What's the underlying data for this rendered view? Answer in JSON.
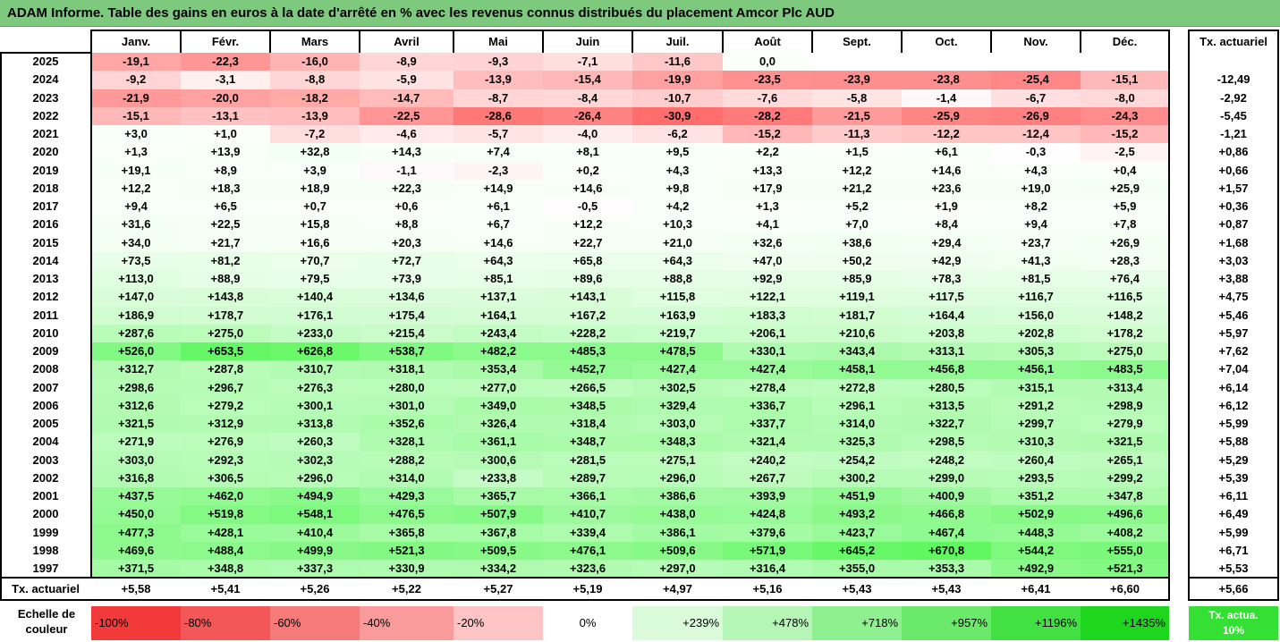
{
  "title": "ADAM Informe. Table des gains en euros à la date d'arrêté en % avec les revenus connus distribués du placement Amcor Plc AUD",
  "months": [
    "Janv.",
    "Févr.",
    "Mars",
    "Avril",
    "Mai",
    "Juin",
    "Juil.",
    "Août",
    "Sept.",
    "Oct.",
    "Nov.",
    "Déc."
  ],
  "rate_header": "Tx. actuariel",
  "footer_label": "Tx. actuariel",
  "scale_label": "Echelle de couleur",
  "scale": [
    "-100%",
    "-80%",
    "-60%",
    "-40%",
    "-20%",
    "0%",
    "+239%",
    "+478%",
    "+718%",
    "+957%",
    "+1196%",
    "+1435%"
  ],
  "scale_colors": [
    "#f23a3a",
    "#f45757",
    "#f77a7a",
    "#f99b9b",
    "#fcc4c4",
    "#ffffff",
    "#d9fbd9",
    "#b5f5b5",
    "#8ff08f",
    "#6ae96a",
    "#43e043",
    "#1fd61f"
  ],
  "rate_legend": "Tx. actua. 10%",
  "rate_legend_color": "#33e033",
  "chart_data": {
    "type": "table",
    "title": "ADAM Informe. Table des gains en euros à la date d'arrêté en % avec les revenus connus distribués du placement Amcor Plc AUD",
    "columns": [
      "Janv.",
      "Févr.",
      "Mars",
      "Avril",
      "Mai",
      "Juin",
      "Juil.",
      "Août",
      "Sept.",
      "Oct.",
      "Nov.",
      "Déc."
    ],
    "rows": [
      {
        "year": "2025",
        "values": [
          "-19,1",
          "-22,3",
          "-16,0",
          "-8,9",
          "-9,3",
          "-7,1",
          "-11,6",
          "0,0",
          "",
          "",
          "",
          ""
        ],
        "rate": ""
      },
      {
        "year": "2024",
        "values": [
          "-9,2",
          "-3,1",
          "-8,8",
          "-5,9",
          "-13,9",
          "-15,4",
          "-19,9",
          "-23,5",
          "-23,9",
          "-23,8",
          "-25,4",
          "-15,1"
        ],
        "rate": "-12,49"
      },
      {
        "year": "2023",
        "values": [
          "-21,9",
          "-20,0",
          "-18,2",
          "-14,7",
          "-8,7",
          "-8,4",
          "-10,7",
          "-7,6",
          "-5,8",
          "-1,4",
          "-6,7",
          "-8,0"
        ],
        "rate": "-2,92"
      },
      {
        "year": "2022",
        "values": [
          "-15,1",
          "-13,1",
          "-13,9",
          "-22,5",
          "-28,6",
          "-26,4",
          "-30,9",
          "-28,2",
          "-21,5",
          "-25,9",
          "-26,9",
          "-24,3"
        ],
        "rate": "-5,45"
      },
      {
        "year": "2021",
        "values": [
          "+3,0",
          "+1,0",
          "-7,2",
          "-4,6",
          "-5,7",
          "-4,0",
          "-6,2",
          "-15,2",
          "-11,3",
          "-12,2",
          "-12,4",
          "-15,2"
        ],
        "rate": "-1,21"
      },
      {
        "year": "2020",
        "values": [
          "+1,3",
          "+13,9",
          "+32,8",
          "+14,3",
          "+7,4",
          "+8,1",
          "+9,5",
          "+2,2",
          "+1,5",
          "+6,1",
          "-0,3",
          "-2,5"
        ],
        "rate": "+0,86"
      },
      {
        "year": "2019",
        "values": [
          "+19,1",
          "+8,9",
          "+3,9",
          "-1,1",
          "-2,3",
          "+0,2",
          "+4,3",
          "+13,3",
          "+12,2",
          "+14,6",
          "+4,3",
          "+0,4"
        ],
        "rate": "+0,66"
      },
      {
        "year": "2018",
        "values": [
          "+12,2",
          "+18,3",
          "+18,9",
          "+22,3",
          "+14,9",
          "+14,6",
          "+9,8",
          "+17,9",
          "+21,2",
          "+23,6",
          "+19,0",
          "+25,9"
        ],
        "rate": "+1,57"
      },
      {
        "year": "2017",
        "values": [
          "+9,4",
          "+6,5",
          "+0,7",
          "+0,6",
          "+6,1",
          "-0,5",
          "+4,2",
          "+1,3",
          "+5,2",
          "+1,9",
          "+8,2",
          "+5,9"
        ],
        "rate": "+0,36"
      },
      {
        "year": "2016",
        "values": [
          "+31,6",
          "+22,5",
          "+15,8",
          "+8,8",
          "+6,7",
          "+12,2",
          "+10,3",
          "+4,1",
          "+7,0",
          "+8,4",
          "+9,4",
          "+7,8"
        ],
        "rate": "+0,87"
      },
      {
        "year": "2015",
        "values": [
          "+34,0",
          "+21,7",
          "+16,6",
          "+20,3",
          "+14,6",
          "+22,7",
          "+21,0",
          "+32,6",
          "+38,6",
          "+29,4",
          "+23,7",
          "+26,9"
        ],
        "rate": "+1,68"
      },
      {
        "year": "2014",
        "values": [
          "+73,5",
          "+81,2",
          "+70,7",
          "+72,7",
          "+64,3",
          "+65,8",
          "+64,3",
          "+47,0",
          "+50,2",
          "+42,9",
          "+41,3",
          "+28,3"
        ],
        "rate": "+3,03"
      },
      {
        "year": "2013",
        "values": [
          "+113,0",
          "+88,9",
          "+79,5",
          "+73,9",
          "+85,1",
          "+89,6",
          "+88,8",
          "+92,9",
          "+85,9",
          "+78,3",
          "+81,5",
          "+76,4"
        ],
        "rate": "+3,88"
      },
      {
        "year": "2012",
        "values": [
          "+147,0",
          "+143,8",
          "+140,4",
          "+134,6",
          "+137,1",
          "+143,1",
          "+115,8",
          "+122,1",
          "+119,1",
          "+117,5",
          "+116,7",
          "+116,5"
        ],
        "rate": "+4,75"
      },
      {
        "year": "2011",
        "values": [
          "+186,9",
          "+178,7",
          "+176,1",
          "+175,4",
          "+164,1",
          "+167,2",
          "+163,9",
          "+183,3",
          "+181,7",
          "+164,4",
          "+156,0",
          "+148,2"
        ],
        "rate": "+5,46"
      },
      {
        "year": "2010",
        "values": [
          "+287,6",
          "+275,0",
          "+233,0",
          "+215,4",
          "+243,4",
          "+228,2",
          "+219,7",
          "+206,1",
          "+210,6",
          "+203,8",
          "+202,8",
          "+178,2"
        ],
        "rate": "+5,97"
      },
      {
        "year": "2009",
        "values": [
          "+526,0",
          "+653,5",
          "+626,8",
          "+538,7",
          "+482,2",
          "+485,3",
          "+478,5",
          "+330,1",
          "+343,4",
          "+313,1",
          "+305,3",
          "+275,0"
        ],
        "rate": "+7,62"
      },
      {
        "year": "2008",
        "values": [
          "+312,7",
          "+287,8",
          "+310,7",
          "+318,1",
          "+353,4",
          "+452,7",
          "+427,4",
          "+427,4",
          "+458,1",
          "+456,8",
          "+456,1",
          "+483,5"
        ],
        "rate": "+7,04"
      },
      {
        "year": "2007",
        "values": [
          "+298,6",
          "+296,7",
          "+276,3",
          "+280,0",
          "+277,0",
          "+266,5",
          "+302,5",
          "+278,4",
          "+272,8",
          "+280,5",
          "+315,1",
          "+313,4"
        ],
        "rate": "+6,14"
      },
      {
        "year": "2006",
        "values": [
          "+312,6",
          "+279,2",
          "+300,1",
          "+301,0",
          "+349,0",
          "+348,5",
          "+329,4",
          "+336,7",
          "+296,1",
          "+313,5",
          "+291,2",
          "+298,9"
        ],
        "rate": "+6,12"
      },
      {
        "year": "2005",
        "values": [
          "+321,5",
          "+312,9",
          "+313,8",
          "+352,6",
          "+326,4",
          "+318,4",
          "+303,0",
          "+337,7",
          "+314,0",
          "+322,7",
          "+299,7",
          "+279,9"
        ],
        "rate": "+5,99"
      },
      {
        "year": "2004",
        "values": [
          "+271,9",
          "+276,9",
          "+260,3",
          "+328,1",
          "+361,1",
          "+348,7",
          "+348,3",
          "+321,4",
          "+325,3",
          "+298,5",
          "+310,3",
          "+321,5"
        ],
        "rate": "+5,88"
      },
      {
        "year": "2003",
        "values": [
          "+303,0",
          "+292,3",
          "+302,3",
          "+288,2",
          "+300,6",
          "+281,5",
          "+275,1",
          "+240,2",
          "+254,2",
          "+248,2",
          "+260,4",
          "+265,1"
        ],
        "rate": "+5,29"
      },
      {
        "year": "2002",
        "values": [
          "+316,8",
          "+306,5",
          "+296,0",
          "+314,0",
          "+233,8",
          "+289,7",
          "+296,0",
          "+267,7",
          "+300,2",
          "+299,0",
          "+293,5",
          "+299,2"
        ],
        "rate": "+5,39"
      },
      {
        "year": "2001",
        "values": [
          "+437,5",
          "+462,0",
          "+494,9",
          "+429,3",
          "+365,7",
          "+366,1",
          "+386,6",
          "+393,9",
          "+451,9",
          "+400,9",
          "+351,2",
          "+347,8"
        ],
        "rate": "+6,11"
      },
      {
        "year": "2000",
        "values": [
          "+450,0",
          "+519,8",
          "+548,1",
          "+476,5",
          "+507,9",
          "+410,7",
          "+438,0",
          "+424,8",
          "+493,2",
          "+466,8",
          "+502,9",
          "+496,6"
        ],
        "rate": "+6,49"
      },
      {
        "year": "1999",
        "values": [
          "+477,3",
          "+428,1",
          "+410,4",
          "+365,8",
          "+367,8",
          "+339,4",
          "+386,1",
          "+379,6",
          "+423,7",
          "+467,4",
          "+448,3",
          "+408,2"
        ],
        "rate": "+5,99"
      },
      {
        "year": "1998",
        "values": [
          "+469,6",
          "+488,4",
          "+499,9",
          "+521,3",
          "+509,5",
          "+476,1",
          "+509,6",
          "+571,9",
          "+645,2",
          "+670,8",
          "+544,2",
          "+555,0"
        ],
        "rate": "+6,71"
      },
      {
        "year": "1997",
        "values": [
          "+371,5",
          "+348,8",
          "+337,3",
          "+330,9",
          "+334,2",
          "+323,6",
          "+297,0",
          "+316,4",
          "+355,0",
          "+353,3",
          "+492,9",
          "+521,3"
        ],
        "rate": "+5,53"
      }
    ],
    "footer": [
      "+5,58",
      "+5,41",
      "+5,26",
      "+5,22",
      "+5,27",
      "+5,19",
      "+4,97",
      "+5,16",
      "+5,43",
      "+5,43",
      "+6,41",
      "+6,60"
    ],
    "footer_rate": "+5,66",
    "color_scale": {
      "negative_min": -100,
      "positive_max": 1435
    }
  }
}
